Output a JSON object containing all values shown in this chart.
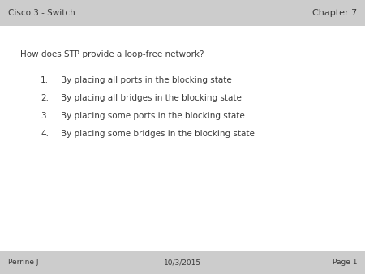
{
  "header_bg": "#cccccc",
  "footer_bg": "#cccccc",
  "body_bg": "#ffffff",
  "header_left": "Cisco 3 - Switch",
  "header_right": "Chapter 7",
  "question": "How does STP provide a loop-free network?",
  "items": [
    "By placing all ports in the blocking state",
    "By placing all bridges in the blocking state",
    "By placing some ports in the blocking state",
    "By placing some bridges in the blocking state"
  ],
  "footer_left": "Perrine J",
  "footer_center": "10/3/2015",
  "footer_right": "Page 1",
  "header_fontsize": 7.5,
  "question_fontsize": 7.5,
  "item_fontsize": 7.5,
  "footer_fontsize": 6.5,
  "text_color": "#3a3a3a"
}
